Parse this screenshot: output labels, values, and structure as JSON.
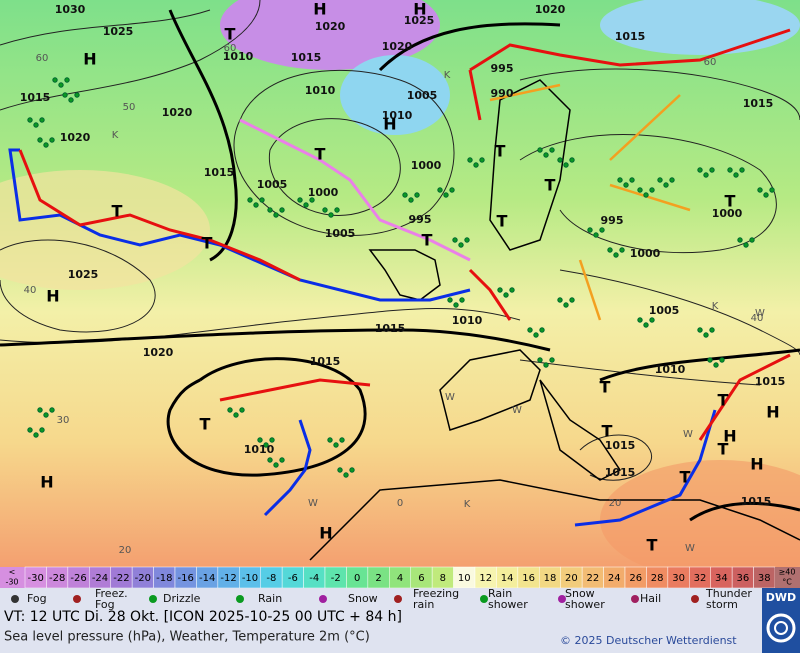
{
  "map": {
    "pressure_labels": [
      "1030",
      "1025",
      "1020",
      "1015",
      "1020",
      "1015",
      "1010",
      "1015",
      "1020",
      "1010",
      "1005",
      "1000",
      "1005",
      "995",
      "1000",
      "1005",
      "1010",
      "1020",
      "1025",
      "1020",
      "1015",
      "995",
      "990",
      "1015",
      "1000",
      "995",
      "1000",
      "1005",
      "1010",
      "1015",
      "1015",
      "1015",
      "1015",
      "1025",
      "1020",
      "1015",
      "1015",
      "1010",
      "1010"
    ],
    "centers": [
      "H",
      "H",
      "H",
      "H",
      "T",
      "T",
      "T",
      "T",
      "T",
      "T",
      "T",
      "T",
      "T",
      "H",
      "T",
      "H",
      "H",
      "T",
      "T",
      "T",
      "H",
      "H",
      "T",
      "T",
      "T",
      "H"
    ],
    "minor_letters": [
      "K",
      "K",
      "W",
      "W",
      "K",
      "W",
      "W",
      "K",
      "W",
      "W"
    ],
    "grid_labels": [
      "60",
      "50",
      "40",
      "30",
      "20",
      "0",
      "60",
      "60",
      "40",
      "20"
    ]
  },
  "legend": {
    "lower_end": {
      "symbol": "<",
      "value": -30
    },
    "temperatures": [
      -30,
      -28,
      -26,
      -24,
      -22,
      -20,
      -18,
      -16,
      -14,
      -12,
      -10,
      -8,
      -6,
      -4,
      -2,
      0,
      2,
      4,
      6,
      8,
      10,
      12,
      14,
      16,
      18,
      20,
      22,
      24,
      26,
      28,
      30,
      32,
      34,
      36,
      38
    ],
    "upper_end": {
      "symbol": "≥40",
      "unit": "°C"
    },
    "colors": [
      "#d68fe0",
      "#cc88dc",
      "#bf82d9",
      "#b07cd6",
      "#a07ad6",
      "#9080d8",
      "#8088dc",
      "#7494e0",
      "#6aa2e4",
      "#62b0e8",
      "#5cbfea",
      "#56cde6",
      "#54d8d8",
      "#56e0c4",
      "#5ee4ac",
      "#68e494",
      "#7ae284",
      "#90e47c",
      "#a8e67a",
      "#c0ea7c",
      "#fafae0",
      "#f6f4b0",
      "#f4ee9c",
      "#f2e48e",
      "#f2d884",
      "#f2cc7c",
      "#f2bc74",
      "#f2ac6c",
      "#f29c66",
      "#ef8c62",
      "#ea7c60",
      "#e26e5e",
      "#d8645e",
      "#cc6060",
      "#bc6464"
    ],
    "upper_color": "#b07070",
    "weather_symbols": [
      [
        "Fog"
      ],
      [
        "Freez.",
        "Fog"
      ],
      [
        "Drizzle"
      ],
      [
        "Rain"
      ],
      [
        "Snow"
      ],
      [
        "Freezing",
        "rain"
      ],
      [
        "Rain",
        "shower"
      ],
      [
        "Snow",
        "shower"
      ],
      [
        "Hail"
      ],
      [
        "Thunder",
        "storm"
      ]
    ]
  },
  "footer": {
    "valid_time": "VT: 12 UTC Di.  28 Okt. [ICON 2025-10-25  00 UTC + 84 h]",
    "description": "Sea level pressure (hPa), Weather, Temperature 2m (°C)",
    "copyright": "© 2025 Deutscher Wetterdienst",
    "logo": "DWD"
  }
}
